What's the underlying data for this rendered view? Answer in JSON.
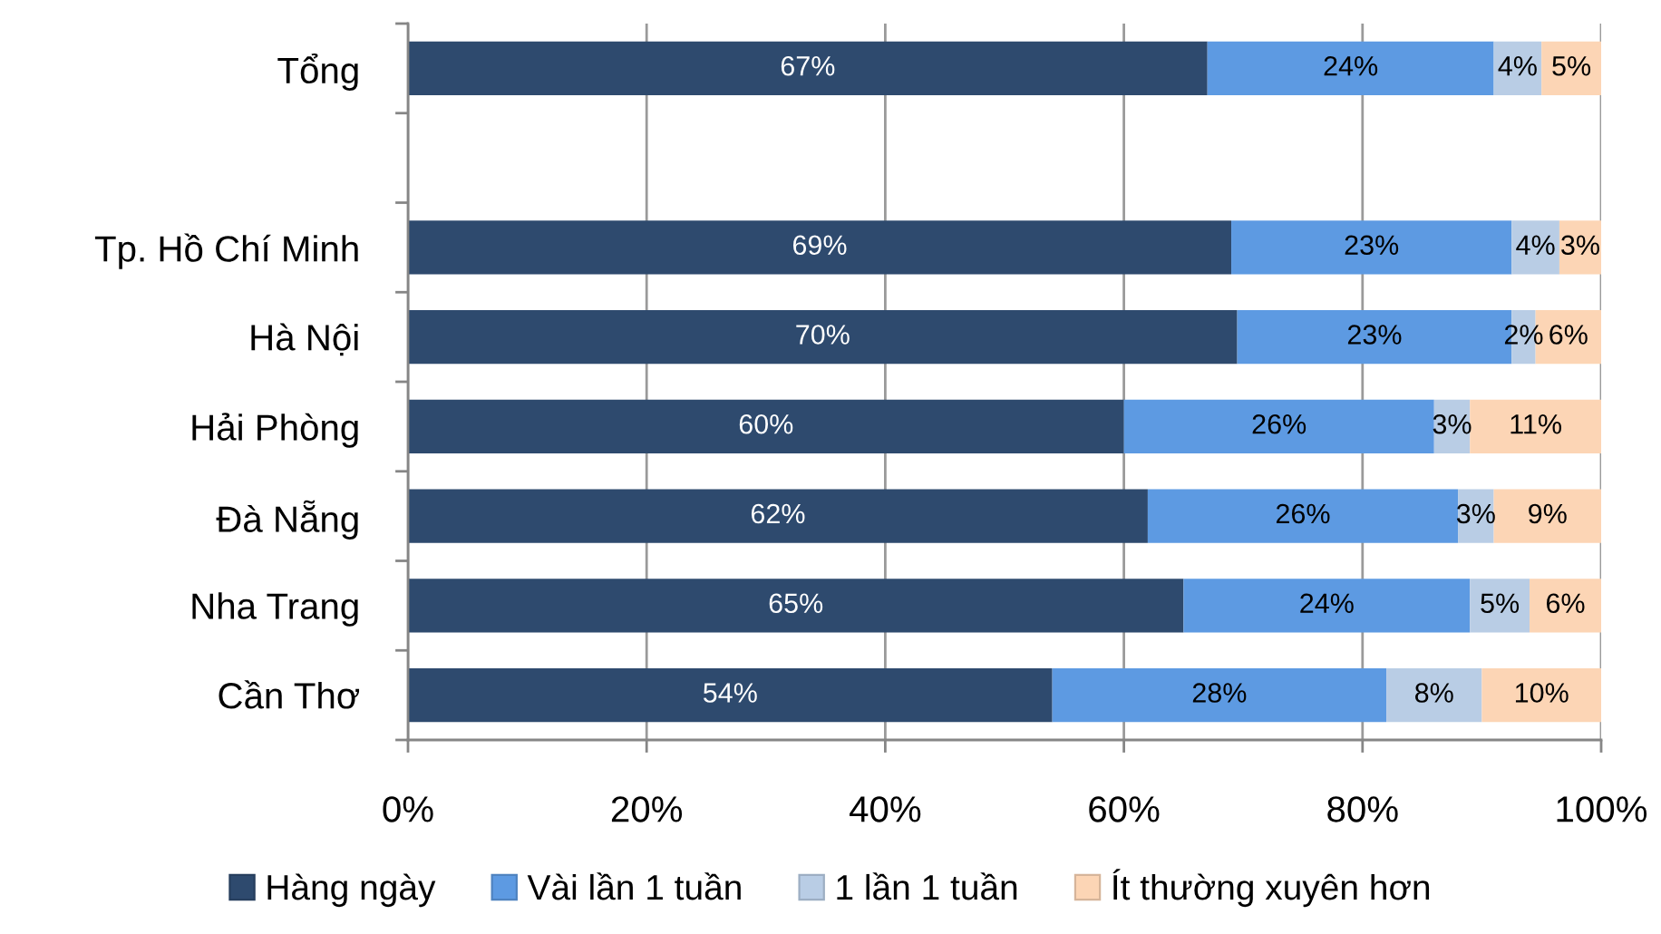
{
  "chart_data": {
    "type": "bar",
    "orientation": "horizontal",
    "stacked": true,
    "categories": [
      "Tổng",
      null,
      "Tp. Hồ Chí Minh",
      "Hà Nội",
      "Hải Phòng",
      "Đà Nẵng",
      "Nha Trang",
      "Cần Thơ"
    ],
    "series": [
      {
        "name": "Hàng ngày",
        "color": "#2e4a6e",
        "values": [
          67,
          null,
          69,
          69.5,
          60,
          62,
          65,
          54
        ],
        "value_labels": [
          "67%",
          null,
          "69%",
          "70%",
          "60%",
          "62%",
          "65%",
          "54%"
        ]
      },
      {
        "name": "Vài lần 1 tuần",
        "color": "#5d9ae2",
        "values": [
          24,
          null,
          23.5,
          23,
          26,
          26,
          24,
          28
        ],
        "value_labels": [
          "24%",
          null,
          "23%",
          "23%",
          "26%",
          "26%",
          "24%",
          "28%"
        ]
      },
      {
        "name": "1 lần 1 tuần",
        "color": "#b9cde5",
        "values": [
          4,
          null,
          4,
          2,
          3,
          3,
          5,
          8
        ],
        "value_labels": [
          "4%",
          null,
          "4%",
          "2%",
          "3%",
          "3%",
          "5%",
          "8%"
        ]
      },
      {
        "name": "Ít thường xuyên hơn",
        "color": "#fcd5b5",
        "values": [
          5,
          null,
          3.5,
          5.5,
          11,
          9,
          6,
          10
        ],
        "value_labels": [
          "5%",
          null,
          "3%",
          "6%",
          "11%",
          "9%",
          "6%",
          "10%"
        ]
      }
    ],
    "xlim": [
      0,
      100
    ],
    "xticks": [
      {
        "value": 0,
        "label": "0%"
      },
      {
        "value": 20,
        "label": "20%"
      },
      {
        "value": 40,
        "label": "40%"
      },
      {
        "value": 60,
        "label": "60%"
      },
      {
        "value": 80,
        "label": "80%"
      },
      {
        "value": 100,
        "label": "100%"
      }
    ],
    "grid": "x",
    "legend": "bottom"
  }
}
